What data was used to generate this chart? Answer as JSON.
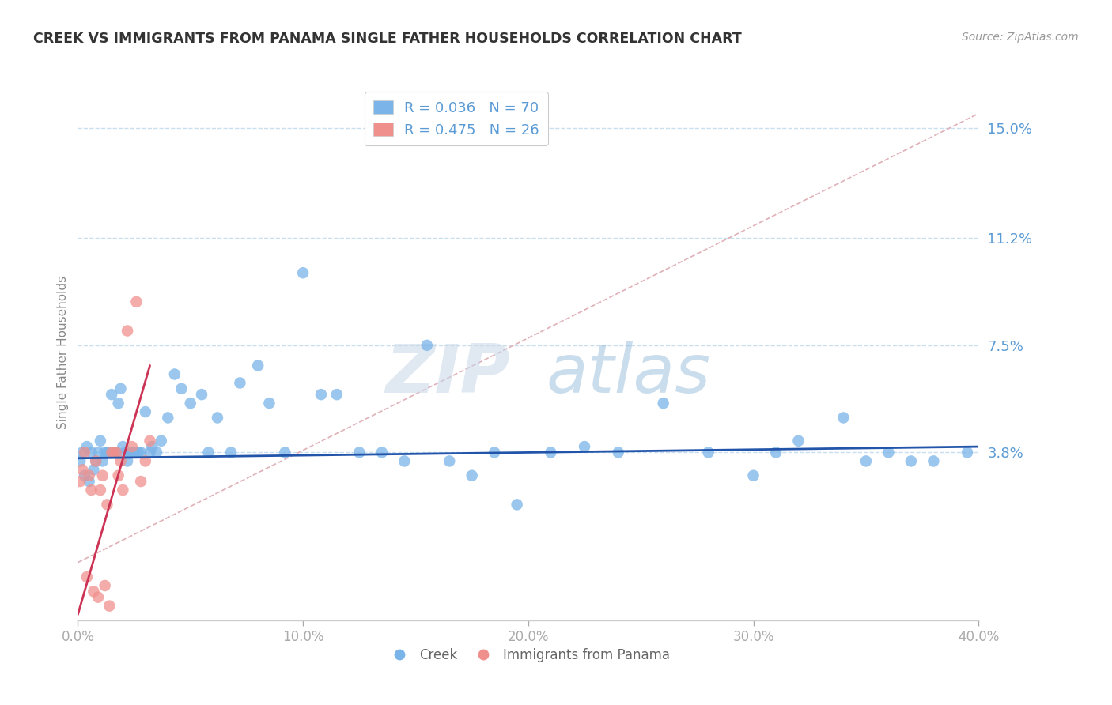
{
  "title": "CREEK VS IMMIGRANTS FROM PANAMA SINGLE FATHER HOUSEHOLDS CORRELATION CHART",
  "source_text": "Source: ZipAtlas.com",
  "ylabel": "Single Father Households",
  "watermark_zip": "ZIP",
  "watermark_atlas": "atlas",
  "xlim": [
    0.0,
    0.4
  ],
  "ylim": [
    -0.02,
    0.165
  ],
  "yticks": [
    0.038,
    0.075,
    0.112,
    0.15
  ],
  "ytick_labels": [
    "3.8%",
    "7.5%",
    "11.2%",
    "15.0%"
  ],
  "xticks": [
    0.0,
    0.1,
    0.2,
    0.3,
    0.4
  ],
  "xtick_labels": [
    "0.0%",
    "10.0%",
    "20.0%",
    "30.0%",
    "40.0%"
  ],
  "legend_r_entries": [
    {
      "label": "R = 0.036   N = 70",
      "color": "#7ab4e8"
    },
    {
      "label": "R = 0.475   N = 26",
      "color": "#f0908c"
    }
  ],
  "creek_color": "#7ab4e8",
  "panama_color": "#f0908c",
  "creek_line_color": "#2255aa",
  "panama_line_color": "#cc3355",
  "diag_line_color": "#e0b0b8",
  "title_color": "#333333",
  "axis_label_color": "#5b9bd5",
  "ytick_color": "#5b9bd5",
  "xtick_color": "#aaaaaa",
  "grid_color": "#c8dff0",
  "background_color": "#ffffff",
  "creek_scatter_x": [
    0.001,
    0.002,
    0.003,
    0.004,
    0.005,
    0.006,
    0.007,
    0.008,
    0.009,
    0.01,
    0.011,
    0.012,
    0.013,
    0.014,
    0.015,
    0.016,
    0.017,
    0.018,
    0.019,
    0.02,
    0.021,
    0.022,
    0.023,
    0.024,
    0.025,
    0.026,
    0.027,
    0.028,
    0.03,
    0.032,
    0.033,
    0.035,
    0.037,
    0.04,
    0.043,
    0.046,
    0.05,
    0.055,
    0.058,
    0.062,
    0.068,
    0.072,
    0.08,
    0.085,
    0.092,
    0.1,
    0.108,
    0.115,
    0.125,
    0.135,
    0.145,
    0.155,
    0.165,
    0.175,
    0.185,
    0.195,
    0.21,
    0.225,
    0.24,
    0.26,
    0.28,
    0.3,
    0.31,
    0.32,
    0.34,
    0.35,
    0.36,
    0.37,
    0.38,
    0.395
  ],
  "creek_scatter_y": [
    0.035,
    0.038,
    0.03,
    0.04,
    0.028,
    0.038,
    0.032,
    0.035,
    0.038,
    0.042,
    0.035,
    0.038,
    0.038,
    0.038,
    0.058,
    0.038,
    0.038,
    0.055,
    0.06,
    0.04,
    0.038,
    0.035,
    0.038,
    0.038,
    0.038,
    0.038,
    0.038,
    0.038,
    0.052,
    0.038,
    0.04,
    0.038,
    0.042,
    0.05,
    0.065,
    0.06,
    0.055,
    0.058,
    0.038,
    0.05,
    0.038,
    0.062,
    0.068,
    0.055,
    0.038,
    0.1,
    0.058,
    0.058,
    0.038,
    0.038,
    0.035,
    0.075,
    0.035,
    0.03,
    0.038,
    0.02,
    0.038,
    0.04,
    0.038,
    0.055,
    0.038,
    0.03,
    0.038,
    0.042,
    0.05,
    0.035,
    0.038,
    0.035,
    0.035,
    0.038
  ],
  "panama_scatter_x": [
    0.001,
    0.002,
    0.003,
    0.004,
    0.005,
    0.006,
    0.007,
    0.008,
    0.009,
    0.01,
    0.011,
    0.012,
    0.013,
    0.014,
    0.015,
    0.016,
    0.017,
    0.018,
    0.019,
    0.02,
    0.022,
    0.024,
    0.026,
    0.028,
    0.03,
    0.032
  ],
  "panama_scatter_y": [
    0.028,
    0.032,
    0.038,
    -0.005,
    0.03,
    0.025,
    -0.01,
    0.035,
    -0.012,
    0.025,
    0.03,
    -0.008,
    0.02,
    -0.015,
    0.038,
    0.038,
    0.038,
    0.03,
    0.035,
    0.025,
    0.08,
    0.04,
    0.09,
    0.028,
    0.035,
    0.042
  ],
  "creek_trend_x": [
    0.0,
    0.4
  ],
  "creek_trend_y": [
    0.036,
    0.04
  ],
  "panama_trend_x": [
    0.0,
    0.032
  ],
  "panama_trend_y": [
    -0.018,
    0.068
  ],
  "diag_trend_x": [
    0.0,
    0.4
  ],
  "diag_trend_y": [
    0.0,
    0.155
  ]
}
